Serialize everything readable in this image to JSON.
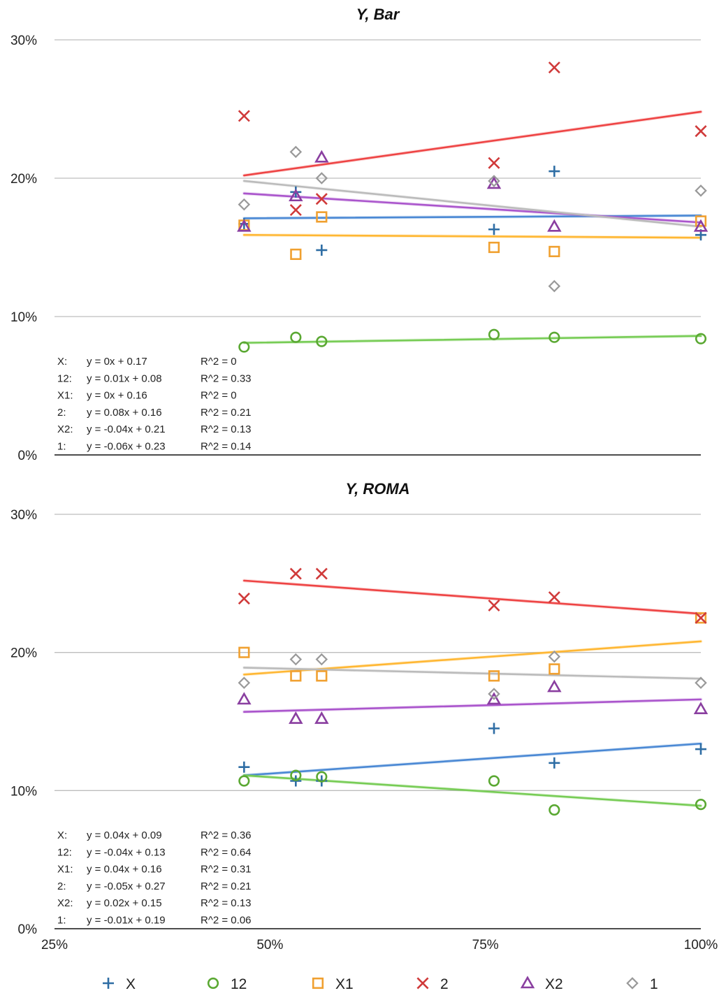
{
  "chart_data": {
    "type": "scatter",
    "x_ticks": [
      "25%",
      "50%",
      "75%",
      "100%"
    ],
    "xlim": [
      0.25,
      1.0
    ],
    "y_ticks": [
      "0%",
      "10%",
      "20%",
      "30%"
    ],
    "ylim": [
      0,
      0.3
    ],
    "grid": "horizontal",
    "legend_placement": "bottom",
    "series_style": [
      {
        "name": "X",
        "color": "#2e6da4",
        "marker": "plus"
      },
      {
        "name": "12",
        "color": "#5aa832",
        "marker": "circle"
      },
      {
        "name": "X1",
        "color": "#f0a030",
        "marker": "square"
      },
      {
        "name": "2",
        "color": "#d03a3a",
        "marker": "cross"
      },
      {
        "name": "X2",
        "color": "#8a3fa0",
        "marker": "triangle"
      },
      {
        "name": "1",
        "color": "#999999",
        "marker": "diamond"
      }
    ],
    "trend_colors": {
      "X": "#4a88d4",
      "12": "#77cc55",
      "X1": "#ffb733",
      "2": "#ee4444",
      "X2": "#aa55cc",
      "1": "#bbbbbb"
    },
    "panels": [
      {
        "title": "Y, Bar",
        "series": [
          {
            "name": "X",
            "x": [
              0.47,
              0.53,
              0.56,
              0.76,
              0.83,
              1.0
            ],
            "y": [
              0.167,
              0.19,
              0.148,
              0.163,
              0.205,
              0.159
            ],
            "trend": [
              0.171,
              0.173
            ]
          },
          {
            "name": "12",
            "x": [
              0.47,
              0.53,
              0.56,
              0.76,
              0.83,
              1.0
            ],
            "y": [
              0.078,
              0.085,
              0.082,
              0.087,
              0.085,
              0.084
            ],
            "trend": [
              0.081,
              0.086
            ]
          },
          {
            "name": "X1",
            "x": [
              0.47,
              0.53,
              0.56,
              0.76,
              0.83,
              1.0
            ],
            "y": [
              0.166,
              0.145,
              0.172,
              0.15,
              0.147,
              0.169
            ],
            "trend": [
              0.159,
              0.157
            ]
          },
          {
            "name": "2",
            "x": [
              0.47,
              0.53,
              0.56,
              0.76,
              0.83,
              1.0
            ],
            "y": [
              0.245,
              0.177,
              0.185,
              0.211,
              0.28,
              0.234
            ],
            "trend": [
              0.202,
              0.248
            ]
          },
          {
            "name": "X2",
            "x": [
              0.47,
              0.53,
              0.56,
              0.76,
              0.83,
              1.0
            ],
            "y": [
              0.165,
              0.187,
              0.215,
              0.196,
              0.165,
              0.165
            ],
            "trend": [
              0.189,
              0.168
            ]
          },
          {
            "name": "1",
            "x": [
              0.47,
              0.53,
              0.56,
              0.76,
              0.83,
              1.0
            ],
            "y": [
              0.181,
              0.219,
              0.2,
              0.198,
              0.122,
              0.191
            ],
            "trend": [
              0.198,
              0.165
            ]
          }
        ],
        "equations": [
          {
            "label": "X:",
            "eq": "y = 0x + 0.17",
            "r2": "R^2 = 0"
          },
          {
            "label": "12:",
            "eq": "y = 0.01x + 0.08",
            "r2": "R^2 = 0.33"
          },
          {
            "label": "X1:",
            "eq": "y = 0x + 0.16",
            "r2": "R^2 = 0"
          },
          {
            "label": "2:",
            "eq": "y = 0.08x + 0.16",
            "r2": "R^2 = 0.21"
          },
          {
            "label": "X2:",
            "eq": "y = -0.04x + 0.21",
            "r2": "R^2 = 0.13"
          },
          {
            "label": "1:",
            "eq": "y = -0.06x + 0.23",
            "r2": "R^2 = 0.14"
          }
        ]
      },
      {
        "title": "Y, ROMA",
        "series": [
          {
            "name": "X",
            "x": [
              0.47,
              0.53,
              0.56,
              0.76,
              0.83,
              1.0
            ],
            "y": [
              0.117,
              0.107,
              0.107,
              0.145,
              0.12,
              0.13
            ],
            "trend": [
              0.111,
              0.134
            ]
          },
          {
            "name": "12",
            "x": [
              0.47,
              0.53,
              0.56,
              0.76,
              0.83,
              1.0
            ],
            "y": [
              0.107,
              0.111,
              0.11,
              0.107,
              0.086,
              0.09
            ],
            "trend": [
              0.111,
              0.089
            ]
          },
          {
            "name": "X1",
            "x": [
              0.47,
              0.53,
              0.56,
              0.76,
              0.83,
              1.0
            ],
            "y": [
              0.2,
              0.183,
              0.183,
              0.183,
              0.188,
              0.225
            ],
            "trend": [
              0.184,
              0.208
            ]
          },
          {
            "name": "2",
            "x": [
              0.47,
              0.53,
              0.56,
              0.76,
              0.83,
              1.0
            ],
            "y": [
              0.239,
              0.257,
              0.257,
              0.234,
              0.24,
              0.225
            ],
            "trend": [
              0.252,
              0.228
            ]
          },
          {
            "name": "X2",
            "x": [
              0.47,
              0.53,
              0.56,
              0.76,
              0.83,
              1.0
            ],
            "y": [
              0.166,
              0.152,
              0.152,
              0.166,
              0.175,
              0.159
            ],
            "trend": [
              0.157,
              0.166
            ]
          },
          {
            "name": "1",
            "x": [
              0.47,
              0.53,
              0.56,
              0.76,
              0.83,
              1.0
            ],
            "y": [
              0.178,
              0.195,
              0.195,
              0.17,
              0.197,
              0.178
            ],
            "trend": [
              0.189,
              0.181
            ]
          }
        ],
        "equations": [
          {
            "label": "X:",
            "eq": "y = 0.04x + 0.09",
            "r2": "R^2 = 0.36"
          },
          {
            "label": "12:",
            "eq": "y = -0.04x + 0.13",
            "r2": "R^2 = 0.64"
          },
          {
            "label": "X1:",
            "eq": "y = 0.04x + 0.16",
            "r2": "R^2 = 0.31"
          },
          {
            "label": "2:",
            "eq": "y = -0.05x + 0.27",
            "r2": "R^2 = 0.21"
          },
          {
            "label": "X2:",
            "eq": "y = 0.02x + 0.15",
            "r2": "R^2 = 0.13"
          },
          {
            "label": "1:",
            "eq": "y = -0.01x + 0.19",
            "r2": "R^2 = 0.06"
          }
        ]
      }
    ]
  }
}
